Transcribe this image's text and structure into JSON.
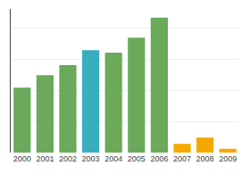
{
  "chart_data": {
    "type": "bar",
    "categories": [
      "2000",
      "2001",
      "2002",
      "2003",
      "2004",
      "2005",
      "2006",
      "2007",
      "2008",
      "2009"
    ],
    "values": [
      52,
      62,
      70,
      82,
      80,
      92,
      108,
      7,
      12,
      3
    ],
    "colors": [
      "#6aaa5a",
      "#6aaa5a",
      "#6aaa5a",
      "#3aadbe",
      "#6aaa5a",
      "#6aaa5a",
      "#6aaa5a",
      "#f5a800",
      "#f5a800",
      "#f5a800"
    ],
    "ylim": [
      0,
      115
    ],
    "yticks": [
      0,
      25,
      50,
      75,
      100
    ],
    "grid": true,
    "tick_labels": "x"
  }
}
